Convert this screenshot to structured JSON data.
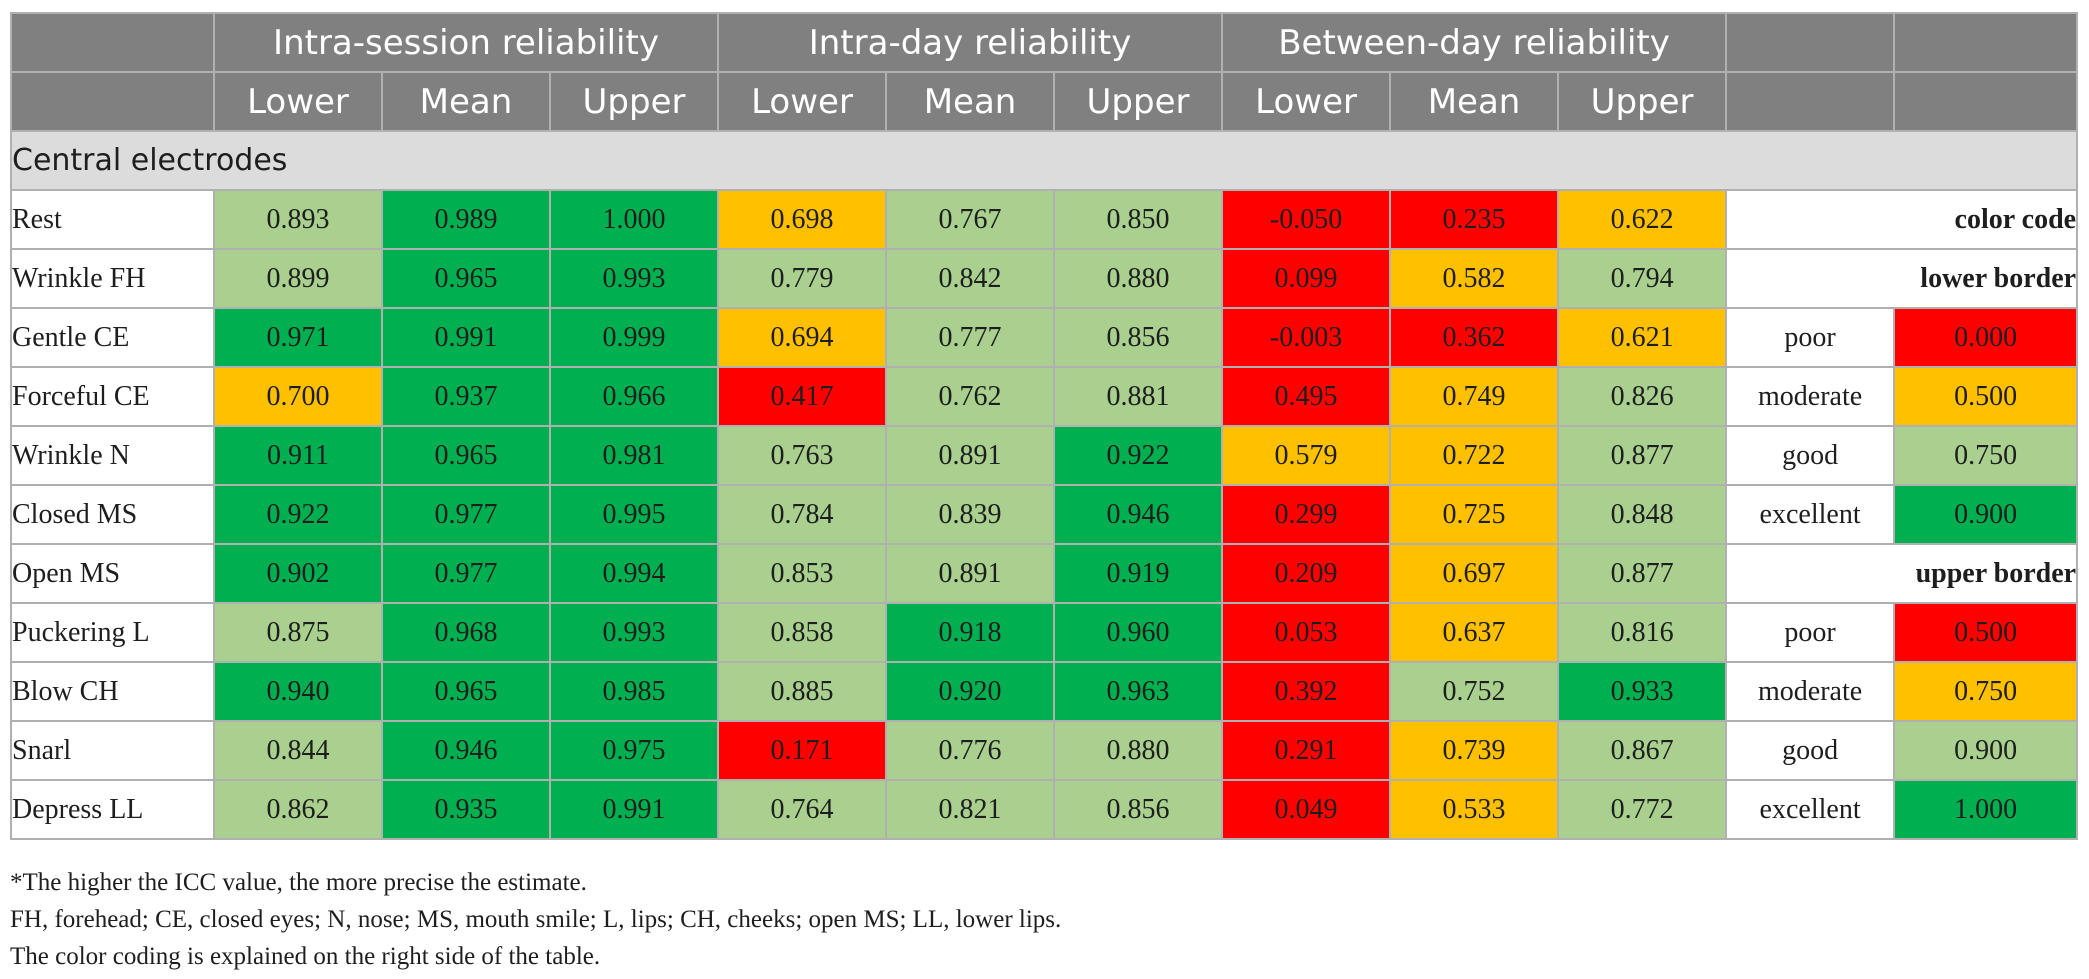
{
  "header": {
    "groups": [
      "Intra-session reliability",
      "Intra-day reliability",
      "Between-day reliability"
    ],
    "subheaders": [
      "Lower",
      "Mean",
      "Upper",
      "Lower",
      "Mean",
      "Upper",
      "Lower",
      "Mean",
      "Upper"
    ]
  },
  "section_title": "Central electrodes",
  "colors": {
    "poor": "#ff0000",
    "moderate": "#ffc000",
    "good": "#a9d08e",
    "excellent": "#00b050"
  },
  "rows": [
    {
      "label": "Rest",
      "values": [
        "0.893",
        "0.989",
        "1.000",
        "0.698",
        "0.767",
        "0.850",
        "-0.050",
        "0.235",
        "0.622"
      ],
      "classes": [
        "good",
        "excellent",
        "excellent",
        "moderate",
        "good",
        "good",
        "poor",
        "poor",
        "moderate"
      ]
    },
    {
      "label": "Wrinkle FH",
      "values": [
        "0.899",
        "0.965",
        "0.993",
        "0.779",
        "0.842",
        "0.880",
        "0.099",
        "0.582",
        "0.794"
      ],
      "classes": [
        "good",
        "excellent",
        "excellent",
        "good",
        "good",
        "good",
        "poor",
        "moderate",
        "good"
      ]
    },
    {
      "label": "Gentle CE",
      "values": [
        "0.971",
        "0.991",
        "0.999",
        "0.694",
        "0.777",
        "0.856",
        "-0.003",
        "0.362",
        "0.621"
      ],
      "classes": [
        "excellent",
        "excellent",
        "excellent",
        "moderate",
        "good",
        "good",
        "poor",
        "poor",
        "moderate"
      ]
    },
    {
      "label": "Forceful CE",
      "values": [
        "0.700",
        "0.937",
        "0.966",
        "0.417",
        "0.762",
        "0.881",
        "0.495",
        "0.749",
        "0.826"
      ],
      "classes": [
        "moderate",
        "excellent",
        "excellent",
        "poor",
        "good",
        "good",
        "poor",
        "moderate",
        "good"
      ]
    },
    {
      "label": "Wrinkle N",
      "values": [
        "0.911",
        "0.965",
        "0.981",
        "0.763",
        "0.891",
        "0.922",
        "0.579",
        "0.722",
        "0.877"
      ],
      "classes": [
        "excellent",
        "excellent",
        "excellent",
        "good",
        "good",
        "excellent",
        "moderate",
        "moderate",
        "good"
      ]
    },
    {
      "label": "Closed MS",
      "values": [
        "0.922",
        "0.977",
        "0.995",
        "0.784",
        "0.839",
        "0.946",
        "0.299",
        "0.725",
        "0.848"
      ],
      "classes": [
        "excellent",
        "excellent",
        "excellent",
        "good",
        "good",
        "excellent",
        "poor",
        "moderate",
        "good"
      ]
    },
    {
      "label": "Open MS",
      "values": [
        "0.902",
        "0.977",
        "0.994",
        "0.853",
        "0.891",
        "0.919",
        "0.209",
        "0.697",
        "0.877"
      ],
      "classes": [
        "excellent",
        "excellent",
        "excellent",
        "good",
        "good",
        "excellent",
        "poor",
        "moderate",
        "good"
      ]
    },
    {
      "label": "Puckering L",
      "values": [
        "0.875",
        "0.968",
        "0.993",
        "0.858",
        "0.918",
        "0.960",
        "0.053",
        "0.637",
        "0.816"
      ],
      "classes": [
        "good",
        "excellent",
        "excellent",
        "good",
        "excellent",
        "excellent",
        "poor",
        "moderate",
        "good"
      ]
    },
    {
      "label": "Blow CH",
      "values": [
        "0.940",
        "0.965",
        "0.985",
        "0.885",
        "0.920",
        "0.963",
        "0.392",
        "0.752",
        "0.933"
      ],
      "classes": [
        "excellent",
        "excellent",
        "excellent",
        "good",
        "excellent",
        "excellent",
        "poor",
        "good",
        "excellent"
      ]
    },
    {
      "label": "Snarl",
      "values": [
        "0.844",
        "0.946",
        "0.975",
        "0.171",
        "0.776",
        "0.880",
        "0.291",
        "0.739",
        "0.867"
      ],
      "classes": [
        "good",
        "excellent",
        "excellent",
        "poor",
        "good",
        "good",
        "poor",
        "moderate",
        "good"
      ]
    },
    {
      "label": "Depress LL",
      "values": [
        "0.862",
        "0.935",
        "0.991",
        "0.764",
        "0.821",
        "0.856",
        "0.049",
        "0.533",
        "0.772"
      ],
      "classes": [
        "good",
        "excellent",
        "excellent",
        "good",
        "good",
        "good",
        "poor",
        "moderate",
        "good"
      ]
    }
  ],
  "legend_rows": [
    {
      "type": "heading",
      "text": "color code"
    },
    {
      "type": "heading",
      "text": "lower border"
    },
    {
      "type": "entry",
      "label": "poor",
      "value": "0.000",
      "cls": "poor"
    },
    {
      "type": "entry",
      "label": "moderate",
      "value": "0.500",
      "cls": "moderate"
    },
    {
      "type": "entry",
      "label": "good",
      "value": "0.750",
      "cls": "good"
    },
    {
      "type": "entry",
      "label": "excellent",
      "value": "0.900",
      "cls": "excellent"
    },
    {
      "type": "heading",
      "text": "upper border"
    },
    {
      "type": "entry",
      "label": "poor",
      "value": "0.500",
      "cls": "poor"
    },
    {
      "type": "entry",
      "label": "moderate",
      "value": "0.750",
      "cls": "moderate"
    },
    {
      "type": "entry",
      "label": "good",
      "value": "0.900",
      "cls": "good"
    },
    {
      "type": "entry",
      "label": "excellent",
      "value": "1.000",
      "cls": "excellent"
    }
  ],
  "notes": [
    "*The higher the ICC value, the more precise the estimate.",
    "FH, forehead; CE, closed eyes; N, nose; MS, mouth smile; L, lips; CH, cheeks; open MS; LL, lower lips.",
    "The color coding is explained on the right side of the table."
  ]
}
